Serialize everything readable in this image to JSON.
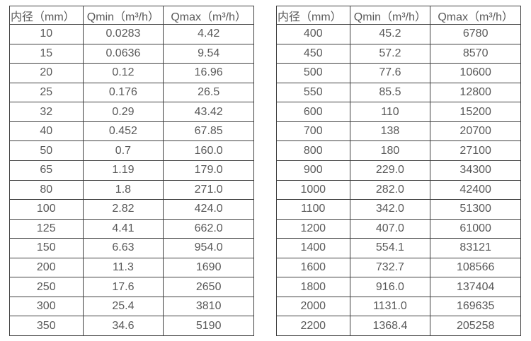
{
  "page": {
    "background": "#ffffff",
    "border_color": "#3f3f3f",
    "text_color": "#595959"
  },
  "chart_data": [
    {
      "type": "table",
      "name": "small-diameter-flow-rates",
      "columns": [
        "内径（mm）",
        "Qmin（m³/h）",
        "Qmax（m³/h）"
      ],
      "rows": [
        [
          "10",
          "0.0283",
          "4.42"
        ],
        [
          "15",
          "0.0636",
          "9.54"
        ],
        [
          "20",
          "0.12",
          "16.96"
        ],
        [
          "25",
          "0.176",
          "26.5"
        ],
        [
          "32",
          "0.29",
          "43.42"
        ],
        [
          "40",
          "0.452",
          "67.85"
        ],
        [
          "50",
          "0.7",
          "160.0"
        ],
        [
          "65",
          "1.19",
          "179.0"
        ],
        [
          "80",
          "1.8",
          "271.0"
        ],
        [
          "100",
          "2.82",
          "424.0"
        ],
        [
          "125",
          "4.41",
          "662.0"
        ],
        [
          "150",
          "6.63",
          "954.0"
        ],
        [
          "200",
          "11.3",
          "1690"
        ],
        [
          "250",
          "17.6",
          "2650"
        ],
        [
          "300",
          "25.4",
          "3810"
        ],
        [
          "350",
          "34.6",
          "5190"
        ]
      ]
    },
    {
      "type": "table",
      "name": "large-diameter-flow-rates",
      "columns": [
        "内径（mm）",
        "Qmin（m³/h）",
        "Qmax（m³/h）"
      ],
      "rows": [
        [
          "400",
          "45.2",
          "6780"
        ],
        [
          "450",
          "57.2",
          "8570"
        ],
        [
          "500",
          "77.6",
          "10600"
        ],
        [
          "550",
          "85.5",
          "12800"
        ],
        [
          "600",
          "110",
          "15200"
        ],
        [
          "700",
          "138",
          "20700"
        ],
        [
          "800",
          "180",
          "27100"
        ],
        [
          "900",
          "229.0",
          "34300"
        ],
        [
          "1000",
          "282.0",
          "42400"
        ],
        [
          "1100",
          "342.0",
          "51300"
        ],
        [
          "1200",
          "407.0",
          "61000"
        ],
        [
          "1400",
          "554.1",
          "83121"
        ],
        [
          "1600",
          "732.7",
          "108566"
        ],
        [
          "1800",
          "916.0",
          "137404"
        ],
        [
          "2000",
          "1131.0",
          "169635"
        ],
        [
          "2200",
          "1368.4",
          "205258"
        ]
      ]
    }
  ]
}
